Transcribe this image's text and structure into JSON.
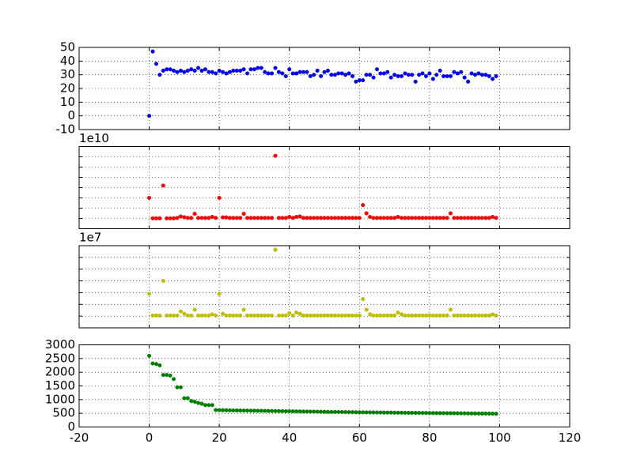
{
  "chart_data": [
    {
      "type": "scatter",
      "color": "#0000ff",
      "x": [
        0,
        1,
        2,
        3,
        4,
        5,
        6,
        7,
        8,
        9,
        10,
        11,
        12,
        13,
        14,
        15,
        16,
        17,
        18,
        19,
        20,
        21,
        22,
        23,
        24,
        25,
        26,
        27,
        28,
        29,
        30,
        31,
        32,
        33,
        34,
        35,
        36,
        37,
        38,
        39,
        40,
        41,
        42,
        43,
        44,
        45,
        46,
        47,
        48,
        49,
        50,
        51,
        52,
        53,
        54,
        55,
        56,
        57,
        58,
        59,
        60,
        61,
        62,
        63,
        64,
        65,
        66,
        67,
        68,
        69,
        70,
        71,
        72,
        73,
        74,
        75,
        76,
        77,
        78,
        79,
        80,
        81,
        82,
        83,
        84,
        85,
        86,
        87,
        88,
        89,
        90,
        91,
        92,
        93,
        94,
        95,
        96,
        97,
        98,
        99
      ],
      "values": [
        0,
        47,
        38,
        30,
        33,
        34,
        34,
        33,
        32,
        33,
        32,
        33,
        34,
        33,
        35,
        33,
        34,
        32,
        32,
        31,
        33,
        32,
        31,
        32,
        33,
        33,
        33,
        34,
        31,
        34,
        34,
        35,
        35,
        32,
        31,
        31,
        35,
        32,
        31,
        29,
        34,
        31,
        31,
        32,
        32,
        32,
        29,
        30,
        33,
        29,
        32,
        33,
        30,
        30,
        31,
        31,
        30,
        31,
        29,
        25,
        26,
        26,
        30,
        30,
        28,
        34,
        31,
        31,
        32,
        28,
        30,
        29,
        29,
        31,
        30,
        30,
        25,
        30,
        31,
        29,
        31,
        27,
        30,
        33,
        29,
        29,
        29,
        32,
        31,
        32,
        28,
        25,
        31,
        30,
        31,
        30,
        30,
        29,
        27,
        29
      ],
      "xlim": [
        -20,
        120
      ],
      "xticks": [
        -20,
        0,
        20,
        40,
        60,
        80,
        100,
        120
      ],
      "show_xticklabels": false,
      "ylim": [
        -10,
        50
      ],
      "yticks": [
        -10,
        0,
        10,
        20,
        30,
        40,
        50
      ],
      "show_yticklabels": true,
      "grid": true
    },
    {
      "type": "scatter",
      "color": "#ff0000",
      "offset_text": "1e10",
      "x": [
        0,
        1,
        2,
        3,
        4,
        5,
        6,
        7,
        8,
        9,
        10,
        11,
        12,
        13,
        14,
        15,
        16,
        17,
        18,
        19,
        20,
        21,
        22,
        23,
        24,
        25,
        26,
        27,
        28,
        29,
        30,
        31,
        32,
        33,
        34,
        35,
        36,
        37,
        38,
        39,
        40,
        41,
        42,
        43,
        44,
        45,
        46,
        47,
        48,
        49,
        50,
        51,
        52,
        53,
        54,
        55,
        56,
        57,
        58,
        59,
        60,
        61,
        62,
        63,
        64,
        65,
        66,
        67,
        68,
        69,
        70,
        71,
        72,
        73,
        74,
        75,
        76,
        77,
        78,
        79,
        80,
        81,
        82,
        83,
        84,
        85,
        86,
        87,
        88,
        89,
        90,
        91,
        92,
        93,
        94,
        95,
        96,
        97,
        98,
        99
      ],
      "values": [
        20000000000.0,
        100000000.0,
        100000000.0,
        100000000.0,
        32000000000.0,
        100000000.0,
        100000000.0,
        100000000.0,
        500000000.0,
        2000000000.0,
        1200000000.0,
        500000000.0,
        500000000.0,
        4500000000.0,
        500000000.0,
        500000000.0,
        500000000.0,
        500000000.0,
        1500000000.0,
        500000000.0,
        20000000000.0,
        1000000000.0,
        1000000000.0,
        500000000.0,
        500000000.0,
        500000000.0,
        500000000.0,
        4500000000.0,
        500000000.0,
        500000000.0,
        500000000.0,
        500000000.0,
        500000000.0,
        500000000.0,
        500000000.0,
        500000000.0,
        61000000000.0,
        500000000.0,
        500000000.0,
        500000000.0,
        1500000000.0,
        500000000.0,
        1500000000.0,
        2000000000.0,
        500000000.0,
        500000000.0,
        500000000.0,
        500000000.0,
        500000000.0,
        500000000.0,
        500000000.0,
        500000000.0,
        500000000.0,
        500000000.0,
        500000000.0,
        500000000.0,
        500000000.0,
        500000000.0,
        500000000.0,
        500000000.0,
        500000000.0,
        13000000000.0,
        5000000000.0,
        1500000000.0,
        500000000.0,
        500000000.0,
        500000000.0,
        500000000.0,
        500000000.0,
        500000000.0,
        500000000.0,
        1500000000.0,
        500000000.0,
        500000000.0,
        500000000.0,
        500000000.0,
        500000000.0,
        500000000.0,
        500000000.0,
        500000000.0,
        500000000.0,
        500000000.0,
        500000000.0,
        500000000.0,
        500000000.0,
        500000000.0,
        5000000000.0,
        500000000.0,
        500000000.0,
        500000000.0,
        500000000.0,
        500000000.0,
        500000000.0,
        500000000.0,
        500000000.0,
        500000000.0,
        500000000.0,
        500000000.0,
        1500000000.0,
        500000000.0
      ],
      "xlim": [
        -20,
        120
      ],
      "xticks": [
        -20,
        0,
        20,
        40,
        60,
        80,
        100,
        120
      ],
      "show_xticklabels": false,
      "ylim": [
        -10000000000.0,
        70000000000.0
      ],
      "yticks": [
        -10000000000.0,
        0,
        10000000000.0,
        20000000000.0,
        30000000000.0,
        40000000000.0,
        50000000000.0,
        60000000000.0,
        70000000000.0
      ],
      "show_yticklabels": false,
      "grid": true
    },
    {
      "type": "scatter",
      "color": "#bfbf00",
      "offset_text": "1e7",
      "x": [
        0,
        1,
        2,
        3,
        4,
        5,
        6,
        7,
        8,
        9,
        10,
        11,
        12,
        13,
        14,
        15,
        16,
        17,
        18,
        19,
        20,
        21,
        22,
        23,
        24,
        25,
        26,
        27,
        28,
        29,
        30,
        31,
        32,
        33,
        34,
        35,
        36,
        37,
        38,
        39,
        40,
        41,
        42,
        43,
        44,
        45,
        46,
        47,
        48,
        49,
        50,
        51,
        52,
        53,
        54,
        55,
        56,
        57,
        58,
        59,
        60,
        61,
        62,
        63,
        64,
        65,
        66,
        67,
        68,
        69,
        70,
        71,
        72,
        73,
        74,
        75,
        76,
        77,
        78,
        79,
        80,
        81,
        82,
        83,
        84,
        85,
        86,
        87,
        88,
        89,
        90,
        91,
        92,
        93,
        94,
        95,
        96,
        97,
        98,
        99
      ],
      "values": [
        19000000.0,
        500000.0,
        500000.0,
        500000.0,
        30000000.0,
        500000.0,
        500000.0,
        500000.0,
        500000.0,
        4000000.0,
        2000000.0,
        500000.0,
        500000.0,
        5500000.0,
        500000.0,
        500000.0,
        500000.0,
        500000.0,
        1500000.0,
        500000.0,
        19000000.0,
        2000000.0,
        500000.0,
        500000.0,
        500000.0,
        500000.0,
        500000.0,
        5500000.0,
        500000.0,
        500000.0,
        500000.0,
        500000.0,
        500000.0,
        500000.0,
        500000.0,
        500000.0,
        56500000.0,
        500000.0,
        500000.0,
        500000.0,
        2500000.0,
        500000.0,
        3000000.0,
        2000000.0,
        500000.0,
        500000.0,
        500000.0,
        500000.0,
        500000.0,
        500000.0,
        500000.0,
        500000.0,
        500000.0,
        500000.0,
        500000.0,
        500000.0,
        500000.0,
        500000.0,
        500000.0,
        500000.0,
        500000.0,
        14500000.0,
        5500000.0,
        1500000.0,
        500000.0,
        500000.0,
        500000.0,
        500000.0,
        500000.0,
        500000.0,
        500000.0,
        3000000.0,
        1500000.0,
        500000.0,
        500000.0,
        500000.0,
        500000.0,
        500000.0,
        500000.0,
        500000.0,
        500000.0,
        500000.0,
        500000.0,
        500000.0,
        500000.0,
        500000.0,
        5500000.0,
        500000.0,
        500000.0,
        500000.0,
        500000.0,
        500000.0,
        500000.0,
        500000.0,
        500000.0,
        500000.0,
        500000.0,
        500000.0,
        1500000.0,
        500000.0
      ],
      "xlim": [
        -20,
        120
      ],
      "xticks": [
        -20,
        0,
        20,
        40,
        60,
        80,
        100,
        120
      ],
      "show_xticklabels": false,
      "ylim": [
        -10000000.0,
        60000000.0
      ],
      "yticks": [
        -10000000.0,
        0,
        10000000.0,
        20000000.0,
        30000000.0,
        40000000.0,
        50000000.0,
        60000000.0
      ],
      "show_yticklabels": false,
      "grid": true
    },
    {
      "type": "scatter",
      "color": "#008000",
      "x": [
        0,
        1,
        2,
        3,
        4,
        5,
        6,
        7,
        8,
        9,
        10,
        11,
        12,
        13,
        14,
        15,
        16,
        17,
        18,
        19,
        20,
        21,
        22,
        23,
        24,
        25,
        26,
        27,
        28,
        29,
        30,
        31,
        32,
        33,
        34,
        35,
        36,
        37,
        38,
        39,
        40,
        41,
        42,
        43,
        44,
        45,
        46,
        47,
        48,
        49,
        50,
        51,
        52,
        53,
        54,
        55,
        56,
        57,
        58,
        59,
        60,
        61,
        62,
        63,
        64,
        65,
        66,
        67,
        68,
        69,
        70,
        71,
        72,
        73,
        74,
        75,
        76,
        77,
        78,
        79,
        80,
        81,
        82,
        83,
        84,
        85,
        86,
        87,
        88,
        89,
        90,
        91,
        92,
        93,
        94,
        95,
        96,
        97,
        98,
        99
      ],
      "values": [
        2600,
        2320,
        2300,
        2250,
        1900,
        1900,
        1880,
        1750,
        1450,
        1450,
        1050,
        1050,
        950,
        920,
        880,
        850,
        800,
        800,
        800,
        620,
        615,
        612,
        610,
        608,
        606,
        604,
        602,
        600,
        598,
        596,
        594,
        592,
        590,
        588,
        586,
        584,
        582,
        580,
        578,
        576,
        574,
        572,
        570,
        568,
        566,
        564,
        562,
        560,
        558,
        556,
        555,
        553,
        552,
        550,
        548,
        547,
        545,
        543,
        542,
        540,
        538,
        537,
        535,
        534,
        532,
        531,
        530,
        528,
        527,
        526,
        524,
        523,
        522,
        520,
        519,
        518,
        516,
        515,
        514,
        512,
        511,
        510,
        508,
        507,
        506,
        504,
        503,
        502,
        500,
        499,
        498,
        496,
        495,
        494,
        492,
        491,
        490,
        488,
        487,
        485
      ],
      "xlim": [
        -20,
        120
      ],
      "xticks": [
        -20,
        0,
        20,
        40,
        60,
        80,
        100,
        120
      ],
      "show_xticklabels": true,
      "ylim": [
        0,
        3000
      ],
      "yticks": [
        0,
        500,
        1000,
        1500,
        2000,
        2500,
        3000
      ],
      "show_yticklabels": true,
      "grid": true
    }
  ]
}
